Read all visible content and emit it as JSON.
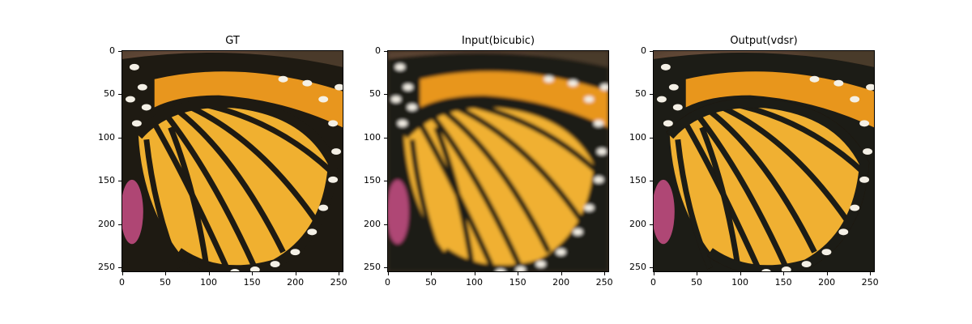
{
  "figure": {
    "panels": [
      {
        "title": "GT",
        "style": "sharp"
      },
      {
        "title": "Input(bicubic)",
        "style": "blurry"
      },
      {
        "title": "Output(vdsr)",
        "style": "sharpened"
      }
    ],
    "y_ticks": [
      "0",
      "50",
      "100",
      "150",
      "200",
      "250"
    ],
    "x_ticks": [
      "0",
      "50",
      "100",
      "150",
      "200",
      "250"
    ],
    "colors": {
      "wing_orange": "#f0b030",
      "vein_black": "#1e1a12",
      "flower_pink": "#c94f86",
      "background_brown": "#4a3a2a"
    }
  }
}
